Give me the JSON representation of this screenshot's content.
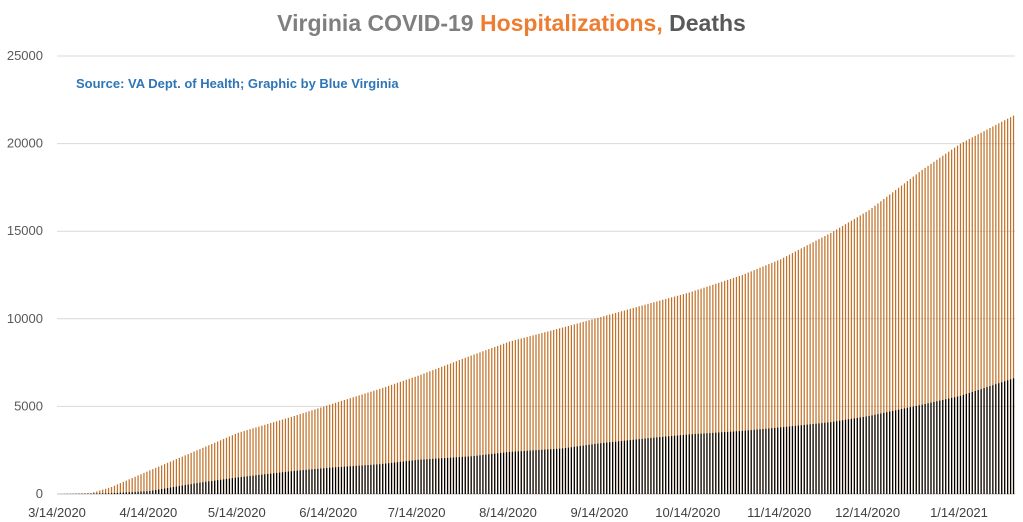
{
  "title": {
    "part1": "Virginia COVID-19 ",
    "part2": "Hospitalizations,",
    "part3": " Deaths",
    "part1_color": "#7f7f7f",
    "part2_color": "#ed7d31",
    "part3_color": "#595959"
  },
  "source": {
    "text": "Source: VA Dept. of Health; Graphic by Blue Virginia",
    "color": "#2e75b6"
  },
  "chart_data": {
    "type": "bar",
    "start_date": "3/14/2020",
    "end_date": "2/1/2021",
    "x_tick_labels": [
      "3/14/2020",
      "4/14/2020",
      "5/14/2020",
      "6/14/2020",
      "7/14/2020",
      "8/14/2020",
      "9/14/2020",
      "10/14/2020",
      "11/14/2020",
      "12/14/2020",
      "1/14/2021"
    ],
    "y_tick_labels": [
      "0",
      "5000",
      "10000",
      "15000",
      "20000",
      "25000"
    ],
    "ylim": [
      0,
      25000
    ],
    "grid": true,
    "legend": "none",
    "series": [
      {
        "name": "Hospitalizations",
        "color": "#c0722a",
        "points": [
          [
            "3/14/2020",
            0
          ],
          [
            "3/25/2020",
            50
          ],
          [
            "4/1/2020",
            400
          ],
          [
            "4/14/2020",
            1350
          ],
          [
            "4/28/2020",
            2350
          ],
          [
            "5/14/2020",
            3500
          ],
          [
            "6/1/2020",
            4400
          ],
          [
            "6/14/2020",
            5100
          ],
          [
            "7/1/2020",
            6000
          ],
          [
            "7/14/2020",
            6750
          ],
          [
            "8/1/2020",
            7900
          ],
          [
            "8/14/2020",
            8700
          ],
          [
            "9/1/2020",
            9500
          ],
          [
            "9/14/2020",
            10100
          ],
          [
            "10/1/2020",
            10900
          ],
          [
            "10/14/2020",
            11500
          ],
          [
            "11/1/2020",
            12500
          ],
          [
            "11/14/2020",
            13400
          ],
          [
            "12/1/2020",
            14900
          ],
          [
            "12/14/2020",
            16200
          ],
          [
            "1/1/2021",
            18500
          ],
          [
            "1/14/2021",
            20000
          ],
          [
            "2/1/2021",
            21600
          ]
        ]
      },
      {
        "name": "Deaths",
        "color": "#000000",
        "points": [
          [
            "3/14/2020",
            0
          ],
          [
            "3/31/2020",
            35
          ],
          [
            "4/14/2020",
            170
          ],
          [
            "5/1/2020",
            650
          ],
          [
            "5/14/2020",
            950
          ],
          [
            "6/1/2020",
            1300
          ],
          [
            "6/14/2020",
            1500
          ],
          [
            "7/1/2020",
            1700
          ],
          [
            "7/14/2020",
            1950
          ],
          [
            "8/1/2020",
            2150
          ],
          [
            "8/14/2020",
            2400
          ],
          [
            "9/1/2020",
            2600
          ],
          [
            "9/14/2020",
            2900
          ],
          [
            "10/1/2020",
            3200
          ],
          [
            "10/14/2020",
            3400
          ],
          [
            "11/1/2020",
            3600
          ],
          [
            "11/14/2020",
            3800
          ],
          [
            "12/1/2020",
            4100
          ],
          [
            "12/14/2020",
            4450
          ],
          [
            "1/1/2021",
            5100
          ],
          [
            "1/14/2021",
            5600
          ],
          [
            "2/1/2021",
            6600
          ]
        ]
      }
    ]
  }
}
